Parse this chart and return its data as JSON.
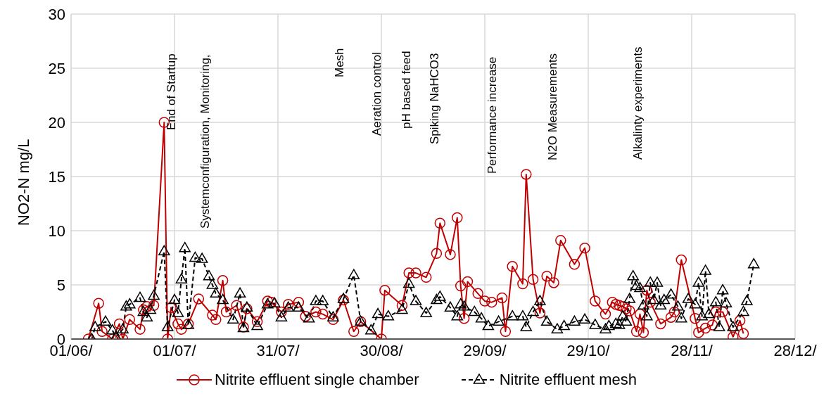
{
  "chart_data": {
    "type": "line",
    "ylabel": "NO2-N mg/L",
    "xlim": [
      "--06-01",
      "--12-28"
    ],
    "xticks": [
      {
        "value": "--06-01",
        "label": "01/06/"
      },
      {
        "value": "--07-01",
        "label": "01/07/"
      },
      {
        "value": "--07-31",
        "label": "31/07/"
      },
      {
        "value": "--08-30",
        "label": "30/08/"
      },
      {
        "value": "--09-29",
        "label": "29/09/"
      },
      {
        "value": "--10-29",
        "label": "29/10/"
      },
      {
        "value": "--11-28",
        "label": "28/11/"
      },
      {
        "value": "--12-28",
        "label": "28/12/"
      }
    ],
    "ylim": [
      0,
      30
    ],
    "yticks": [
      0,
      5,
      10,
      15,
      20,
      25,
      30
    ],
    "grid": true,
    "legend": "bottom",
    "series": [
      {
        "name": "Nitrite effluent single chamber",
        "color": "#c00000",
        "marker": "circle",
        "line_style": "solid",
        "x": [
          "--06-06",
          "--06-09",
          "--06-10",
          "--06-13",
          "--06-15",
          "--06-16",
          "--06-18",
          "--06-21",
          "--06-22",
          "--06-23",
          "--06-25",
          "--06-28",
          "--06-29",
          "--06-30",
          "--07-02",
          "--07-03",
          "--07-05",
          "--07-08",
          "--07-12",
          "--07-13",
          "--07-15",
          "--07-16",
          "--07-19",
          "--07-21",
          "--07-22",
          "--07-25",
          "--07-28",
          "--07-29",
          "--08-01",
          "--08-03",
          "--08-06",
          "--08-08",
          "--08-11",
          "--08-13",
          "--08-16",
          "--08-19",
          "--08-22",
          "--08-24",
          "--08-30",
          "--08-31",
          "--09-05",
          "--09-07",
          "--09-09",
          "--09-12",
          "--09-15",
          "--09-16",
          "--09-19",
          "--09-21",
          "--09-22",
          "--09-23",
          "--09-24",
          "--09-27",
          "--09-29",
          "--10-01",
          "--10-04",
          "--10-05",
          "--10-07",
          "--10-10",
          "--10-11",
          "--10-13",
          "--10-15",
          "--10-17",
          "--10-19",
          "--10-21",
          "--10-25",
          "--10-28",
          "--10-31",
          "--11-03",
          "--11-05",
          "--11-06",
          "--11-07",
          "--11-08",
          "--11-09",
          "--11-10",
          "--11-12",
          "--11-13",
          "--11-14",
          "--11-15",
          "--11-16",
          "--11-19",
          "--11-22",
          "--11-23",
          "--11-25",
          "--11-29",
          "--11-30",
          "--12-02",
          "--12-04",
          "--12-05",
          "--12-07",
          "--12-10",
          "--12-12",
          "--12-13"
        ],
        "values": [
          0,
          3.3,
          0.7,
          0,
          1.4,
          0,
          1.8,
          0.9,
          2.7,
          3.0,
          3.1,
          20.0,
          0,
          2.9,
          1.4,
          0.9,
          1.4,
          3.7,
          2.2,
          1.8,
          5.4,
          2.5,
          3.1,
          1.1,
          2.8,
          1.6,
          3.5,
          3.4,
          2.5,
          3.2,
          3.4,
          2.1,
          2.5,
          2.3,
          1.8,
          3.6,
          0.7,
          1.6,
          0,
          4.5,
          3.1,
          6.1,
          6.1,
          5.7,
          7.9,
          10.7,
          7.8,
          11.2,
          4.9,
          1.9,
          5.3,
          4.2,
          3.5,
          3.4,
          3.8,
          0.7,
          6.7,
          5.1,
          15.2,
          5.5,
          2.4,
          5.8,
          5.2,
          9.1,
          6.9,
          8.4,
          3.5,
          2.3,
          3.4,
          3.2,
          3.1,
          3.0,
          2.8,
          2.6,
          0.7,
          2.3,
          0.6,
          4.5,
          3.4,
          1.4,
          2.0,
          2.5,
          7.3,
          1.9,
          0.6,
          1.0,
          1.3,
          2.5,
          2.5,
          0.2,
          1.7,
          0.5
        ]
      },
      {
        "name": "Nitrite effluent mesh",
        "color": "#000000",
        "marker": "triangle",
        "line_style": "dashed",
        "x": [
          "--06-07",
          "--06-08",
          "--06-11",
          "--06-13",
          "--06-14",
          "--06-16",
          "--06-17",
          "--06-18",
          "--06-21",
          "--06-22",
          "--06-23",
          "--06-24",
          "--06-25",
          "--06-28",
          "--06-29",
          "--07-01",
          "--07-02",
          "--07-03",
          "--07-04",
          "--07-05",
          "--07-07",
          "--07-09",
          "--07-11",
          "--07-12",
          "--07-13",
          "--07-15",
          "--07-18",
          "--07-20",
          "--07-21",
          "--07-22",
          "--07-25",
          "--07-28",
          "--07-30",
          "--08-01",
          "--08-03",
          "--08-06",
          "--08-09",
          "--08-11",
          "--08-13",
          "--08-16",
          "--08-19",
          "--08-22",
          "--08-24",
          "--08-27",
          "--08-29",
          "--09-01",
          "--09-05",
          "--09-07",
          "--09-09",
          "--09-12",
          "--09-15",
          "--09-16",
          "--09-19",
          "--09-21",
          "--09-22",
          "--09-23",
          "--09-26",
          "--09-28",
          "--09-30",
          "--10-03",
          "--10-07",
          "--10-10",
          "--10-11",
          "--10-13",
          "--10-15",
          "--10-17",
          "--10-20",
          "--10-22",
          "--10-25",
          "--10-28",
          "--10-31",
          "--11-03",
          "--11-04",
          "--11-06",
          "--11-07",
          "--11-08",
          "--11-09",
          "--11-10",
          "--11-11",
          "--11-12",
          "--11-13",
          "--11-14",
          "--11-15",
          "--11-16",
          "--11-17",
          "--11-18",
          "--11-19",
          "--11-20",
          "--11-22",
          "--11-24",
          "--11-25",
          "--11-27",
          "--11-29",
          "--11-30",
          "--12-01",
          "--12-02",
          "--12-03",
          "--12-05",
          "--12-06",
          "--12-07",
          "--12-08",
          "--12-10",
          "--12-13",
          "--12-14",
          "--12-16"
        ],
        "values": [
          0,
          1.1,
          1.6,
          0.8,
          0.2,
          0.9,
          3.0,
          3.2,
          3.8,
          2.5,
          2.0,
          2.7,
          4.0,
          8.1,
          1.1,
          3.6,
          2.4,
          5.5,
          8.4,
          1.3,
          7.5,
          7.4,
          5.8,
          5.0,
          4.2,
          3.6,
          1.8,
          4.2,
          1.0,
          2.9,
          1.2,
          3.2,
          3.3,
          2.0,
          2.9,
          2.9,
          1.9,
          3.5,
          3.5,
          2.0,
          3.7,
          5.9,
          1.6,
          0.8,
          2.3,
          2.1,
          2.7,
          5.1,
          3.5,
          2.4,
          3.6,
          3.9,
          2.9,
          2.1,
          3.2,
          3.0,
          2.5,
          1.9,
          1.2,
          1.6,
          2.1,
          2.1,
          1.1,
          2.5,
          3.5,
          1.6,
          0.9,
          1.2,
          1.6,
          1.8,
          1.3,
          0.9,
          1.2,
          1.4,
          1.3,
          2.1,
          1.6,
          3.7,
          5.8,
          4.9,
          4.7,
          3.1,
          2.1,
          5.2,
          3.6,
          5.2,
          3.1,
          3.6,
          4.1,
          3.0,
          1.9,
          3.7,
          3.2,
          5.2,
          2.1,
          6.3,
          2.3,
          3.4,
          1.1,
          4.5,
          3.3,
          1.1,
          2.5,
          3.5,
          6.9
        ]
      }
    ],
    "annotations": [
      "End of Startup",
      "Systemconfiguration, Monitoring,",
      "Mesh",
      "Aeration control",
      "pH based feed",
      "Spiking NaHCO3",
      "Performance increase",
      "N2O Measurements",
      "Alkalinty experiments"
    ]
  }
}
